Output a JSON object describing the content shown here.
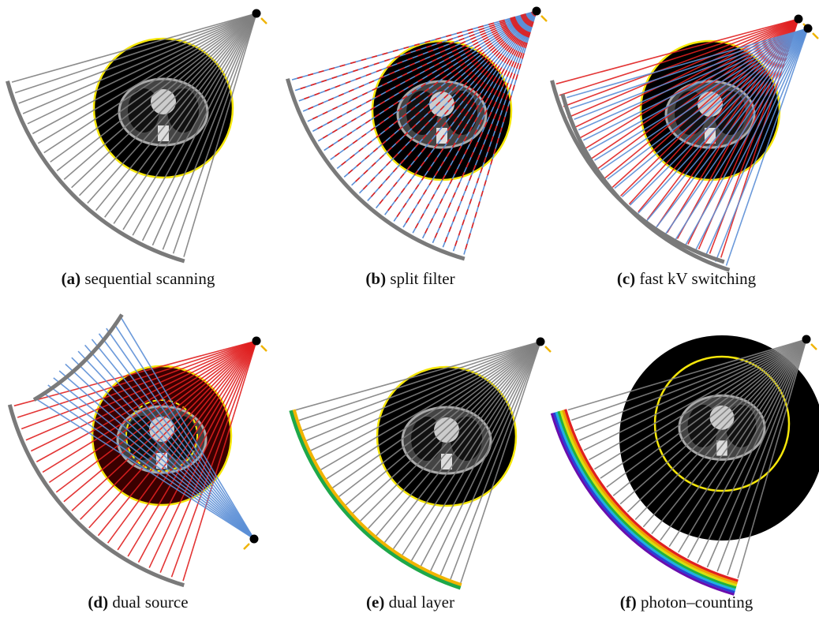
{
  "panels": [
    {
      "label": "(a)",
      "caption": "sequential scanning"
    },
    {
      "label": "(b)",
      "caption": "split filter"
    },
    {
      "label": "(c)",
      "caption": "fast kV switching"
    },
    {
      "label": "(d)",
      "caption": "dual source"
    },
    {
      "label": "(e)",
      "caption": "dual layer"
    },
    {
      "label": "(f)",
      "caption": "photon–counting"
    }
  ]
}
